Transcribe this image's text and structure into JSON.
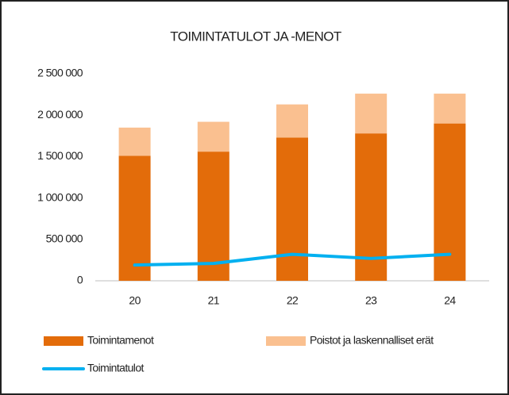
{
  "chart_data": {
    "type": "bar",
    "title": "TOIMINTATULOT JA -MENOT",
    "categories": [
      "20",
      "21",
      "22",
      "23",
      "24"
    ],
    "series": [
      {
        "name": "Toimintamenot",
        "type": "bar",
        "color": "#e36c0a",
        "values": [
          1510000,
          1560000,
          1730000,
          1780000,
          1900000
        ]
      },
      {
        "name": "Poistot ja laskennalliset erät",
        "type": "bar",
        "color": "#fac090",
        "values": [
          340000,
          360000,
          400000,
          480000,
          360000
        ]
      },
      {
        "name": "Toimintatulot",
        "type": "line",
        "color": "#00b0f0",
        "values": [
          190000,
          210000,
          320000,
          270000,
          320000
        ]
      }
    ],
    "stacked": true,
    "ylim": [
      0,
      2500000
    ],
    "yticks": [
      0,
      {
        "value": 500000,
        "label": "500 000"
      },
      {
        "value": 1000000,
        "label": "1 000 000"
      },
      {
        "value": 1500000,
        "label": "1 500 000"
      },
      {
        "value": 2000000,
        "label": "2 000 000"
      },
      {
        "value": 2500000,
        "label": "2 500 000"
      }
    ],
    "grid": false
  }
}
